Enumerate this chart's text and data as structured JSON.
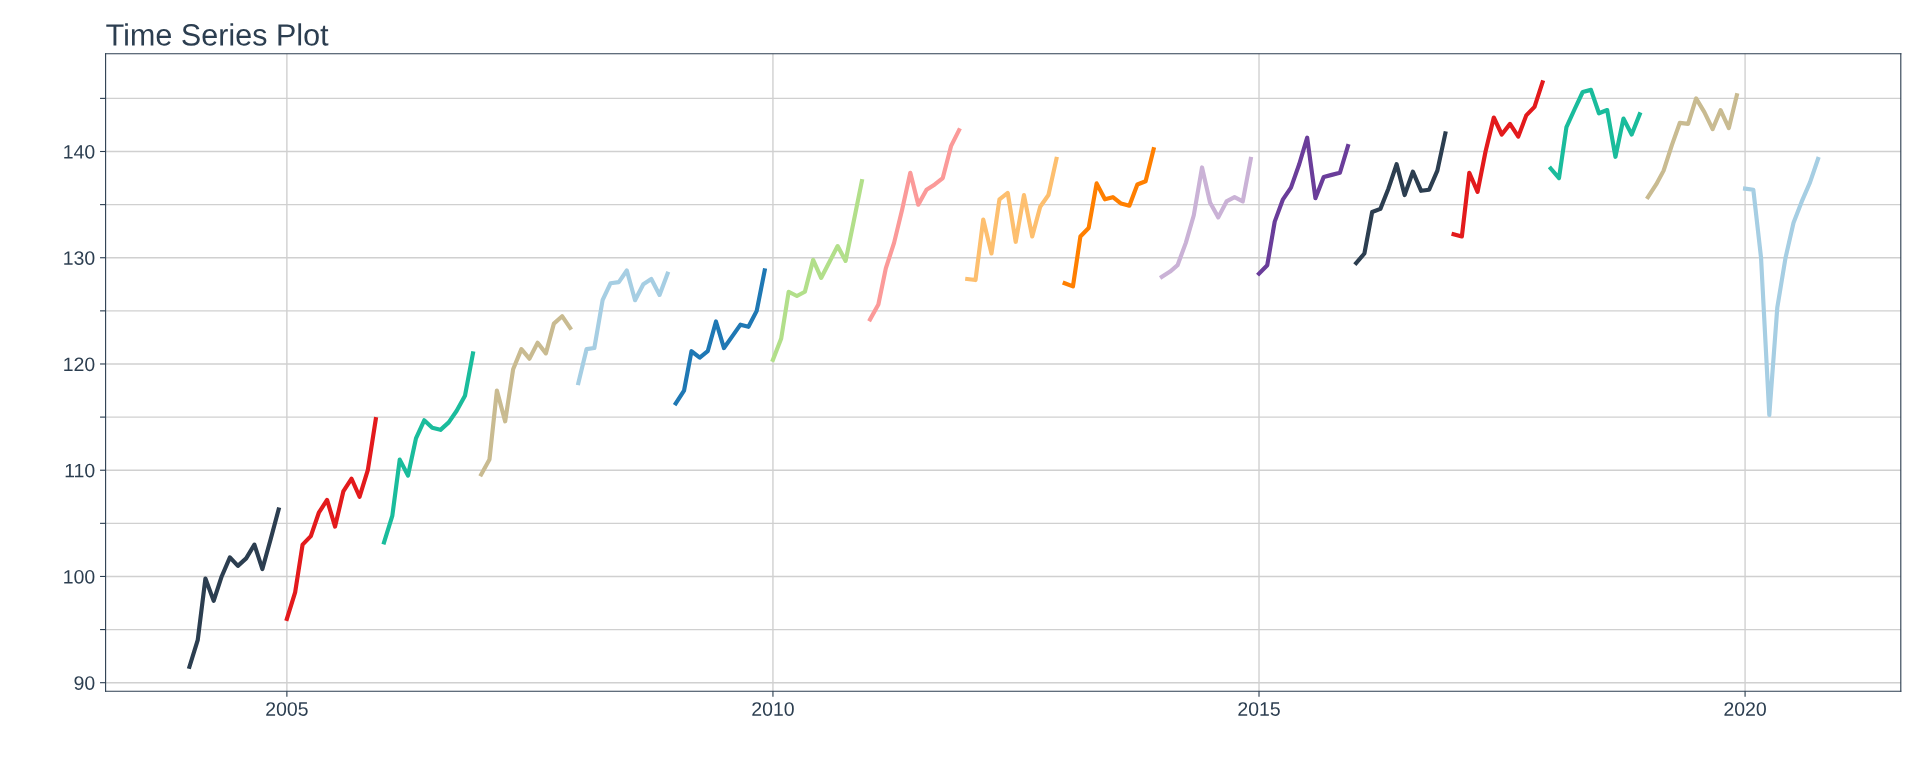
{
  "chart_data": {
    "type": "line",
    "title": "Time Series Plot",
    "xlim": [
      "2003-02-20",
      "2021-08-08"
    ],
    "xticks": [
      {
        "value": "2005-01-01",
        "label": "2005"
      },
      {
        "value": "2010-01-01",
        "label": "2010"
      },
      {
        "value": "2015-01-01",
        "label": "2015"
      },
      {
        "value": "2020-01-01",
        "label": "2020"
      }
    ],
    "ylim": [
      89.2,
      149.2
    ],
    "yticks": [
      90,
      {
        "value": 95,
        "label": null
      },
      100,
      {
        "value": 105,
        "label": null
      },
      110,
      {
        "value": 115,
        "label": null
      },
      120,
      {
        "value": 125,
        "label": null
      },
      130,
      {
        "value": 135,
        "label": null
      },
      140,
      {
        "value": 145,
        "label": null
      }
    ],
    "grid": true,
    "legend": false,
    "line_style": "solid",
    "series": [
      {
        "color": "#2c3e50",
        "x": [
          "2004-01",
          "2004-02",
          "2004-03",
          "2004-04",
          "2004-05",
          "2004-06",
          "2004-07",
          "2004-08",
          "2004-09",
          "2004-10",
          "2004-11",
          "2004-12"
        ],
        "values": [
          91.5,
          94,
          99.8,
          97.7,
          100,
          101.8,
          101,
          101.7,
          103,
          100.7,
          103.5,
          106.3
        ]
      },
      {
        "color": "#e31a1c",
        "x": [
          "2005-01",
          "2005-02",
          "2005-03",
          "2005-04",
          "2005-05",
          "2005-06",
          "2005-07",
          "2005-08",
          "2005-09",
          "2005-10",
          "2005-11",
          "2005-12"
        ],
        "values": [
          96,
          98.5,
          103,
          103.8,
          106,
          107.2,
          104.7,
          108,
          109.2,
          107.5,
          110,
          114.8
        ]
      },
      {
        "color": "#1abc9c",
        "x": [
          "2006-01",
          "2006-02",
          "2006-03",
          "2006-04",
          "2006-05",
          "2006-06",
          "2006-07",
          "2006-08",
          "2006-09",
          "2006-10",
          "2006-11",
          "2006-12"
        ],
        "values": [
          103.2,
          105.7,
          111,
          109.5,
          113,
          114.7,
          114,
          113.8,
          114.5,
          115.6,
          117,
          121
        ]
      },
      {
        "color": "#c9bb91",
        "x": [
          "2007-01",
          "2007-02",
          "2007-03",
          "2007-04",
          "2007-05",
          "2007-06",
          "2007-07",
          "2007-08",
          "2007-09",
          "2007-10",
          "2007-11",
          "2007-12"
        ],
        "values": [
          109.6,
          111,
          117.5,
          114.6,
          119.5,
          121.4,
          120.5,
          122,
          121,
          123.8,
          124.5,
          123.4
        ]
      },
      {
        "color": "#a6cee3",
        "x": [
          "2008-01",
          "2008-02",
          "2008-03",
          "2008-04",
          "2008-05",
          "2008-06",
          "2008-07",
          "2008-08",
          "2008-09",
          "2008-10",
          "2008-11",
          "2008-12"
        ],
        "values": [
          118.2,
          121.4,
          121.5,
          126,
          127.6,
          127.7,
          128.8,
          126,
          127.5,
          128,
          126.5,
          128.5
        ]
      },
      {
        "color": "#1f78b4",
        "x": [
          "2009-01",
          "2009-02",
          "2009-03",
          "2009-04",
          "2009-05",
          "2009-06",
          "2009-07",
          "2009-08",
          "2009-09",
          "2009-10",
          "2009-11",
          "2009-12"
        ],
        "values": [
          116.3,
          117.5,
          121.2,
          120.6,
          121.2,
          124,
          121.5,
          122.6,
          123.7,
          123.5,
          125,
          128.8
        ]
      },
      {
        "color": "#b2df8a",
        "x": [
          "2010-01",
          "2010-02",
          "2010-03",
          "2010-04",
          "2010-05",
          "2010-06",
          "2010-07",
          "2010-08",
          "2010-09",
          "2010-10",
          "2010-11",
          "2010-12"
        ],
        "values": [
          120.4,
          122.4,
          126.8,
          126.4,
          126.8,
          129.8,
          128.1,
          129.6,
          131.1,
          129.7,
          133.5,
          137.2
        ]
      },
      {
        "color": "#fb9a99",
        "x": [
          "2011-01",
          "2011-02",
          "2011-03",
          "2011-04",
          "2011-05",
          "2011-06",
          "2011-07",
          "2011-08",
          "2011-09",
          "2011-10",
          "2011-11",
          "2011-12"
        ],
        "values": [
          124.2,
          125.6,
          129,
          131.4,
          134.5,
          138,
          135,
          136.4,
          136.9,
          137.5,
          140.5,
          142
        ]
      },
      {
        "color": "#fdbf6f",
        "x": [
          "2012-01",
          "2012-02",
          "2012-03",
          "2012-04",
          "2012-05",
          "2012-06",
          "2012-07",
          "2012-08",
          "2012-09",
          "2012-10",
          "2012-11",
          "2012-12"
        ],
        "values": [
          128,
          127.9,
          133.6,
          130.4,
          135.5,
          136.1,
          131.5,
          135.9,
          132,
          134.8,
          135.9,
          139.3
        ]
      },
      {
        "color": "#ff7f00",
        "x": [
          "2013-01",
          "2013-02",
          "2013-03",
          "2013-04",
          "2013-05",
          "2013-06",
          "2013-07",
          "2013-08",
          "2013-09",
          "2013-10",
          "2013-11",
          "2013-12"
        ],
        "values": [
          127.6,
          127.3,
          132,
          132.8,
          137,
          135.5,
          135.7,
          135.1,
          134.9,
          136.9,
          137.2,
          140.2
        ]
      },
      {
        "color": "#cab2d6",
        "x": [
          "2014-01",
          "2014-02",
          "2014-03",
          "2014-04",
          "2014-05",
          "2014-06",
          "2014-07",
          "2014-08",
          "2014-09",
          "2014-10",
          "2014-11",
          "2014-12"
        ],
        "values": [
          128.2,
          128.7,
          129.3,
          131.4,
          134,
          138.5,
          135.2,
          133.8,
          135.3,
          135.7,
          135.3,
          139.3
        ]
      },
      {
        "color": "#6a3d9a",
        "x": [
          "2015-01",
          "2015-02",
          "2015-03",
          "2015-04",
          "2015-05",
          "2015-06",
          "2015-07",
          "2015-08",
          "2015-09",
          "2015-10",
          "2015-11",
          "2015-12"
        ],
        "values": [
          128.5,
          129.3,
          133.4,
          135.5,
          136.6,
          138.8,
          141.3,
          135.6,
          137.6,
          137.8,
          138,
          140.5
        ]
      },
      {
        "color": "#2c3e50",
        "x": [
          "2016-01",
          "2016-02",
          "2016-03",
          "2016-04",
          "2016-05",
          "2016-06",
          "2016-07",
          "2016-08",
          "2016-09",
          "2016-10",
          "2016-11",
          "2016-12"
        ],
        "values": [
          129.5,
          130.4,
          134.3,
          134.6,
          136.5,
          138.8,
          135.9,
          138.1,
          136.3,
          136.4,
          138.2,
          141.7
        ]
      },
      {
        "color": "#e31a1c",
        "x": [
          "2017-01",
          "2017-02",
          "2017-03",
          "2017-04",
          "2017-05",
          "2017-06",
          "2017-07",
          "2017-08",
          "2017-09",
          "2017-10",
          "2017-11",
          "2017-12"
        ],
        "values": [
          132.2,
          132,
          138,
          136.2,
          140,
          143.2,
          141.6,
          142.6,
          141.4,
          143.4,
          144.2,
          146.5
        ]
      },
      {
        "color": "#1abc9c",
        "x": [
          "2018-01",
          "2018-02",
          "2018-03",
          "2018-04",
          "2018-05",
          "2018-06",
          "2018-07",
          "2018-08",
          "2018-09",
          "2018-10",
          "2018-11",
          "2018-12"
        ],
        "values": [
          138.4,
          137.5,
          142.3,
          144,
          145.6,
          145.8,
          143.6,
          143.9,
          139.5,
          143.1,
          141.6,
          143.5
        ]
      },
      {
        "color": "#c9bb91",
        "x": [
          "2019-01",
          "2019-02",
          "2019-03",
          "2019-04",
          "2019-05",
          "2019-06",
          "2019-07",
          "2019-08",
          "2019-09",
          "2019-10",
          "2019-11",
          "2019-12"
        ],
        "values": [
          135.7,
          136.9,
          138.2,
          140.6,
          142.7,
          142.6,
          145,
          143.7,
          142.1,
          143.9,
          142.2,
          145.3
        ]
      },
      {
        "color": "#a6cee3",
        "x": [
          "2020-01",
          "2020-02",
          "2020-03",
          "2020-04",
          "2020-05",
          "2020-06",
          "2020-07",
          "2020-08",
          "2020-09",
          "2020-10"
        ],
        "values": [
          136.5,
          136.4,
          130,
          115.2,
          125.3,
          130,
          133.3,
          135.3,
          137.1,
          139.3
        ]
      }
    ]
  }
}
